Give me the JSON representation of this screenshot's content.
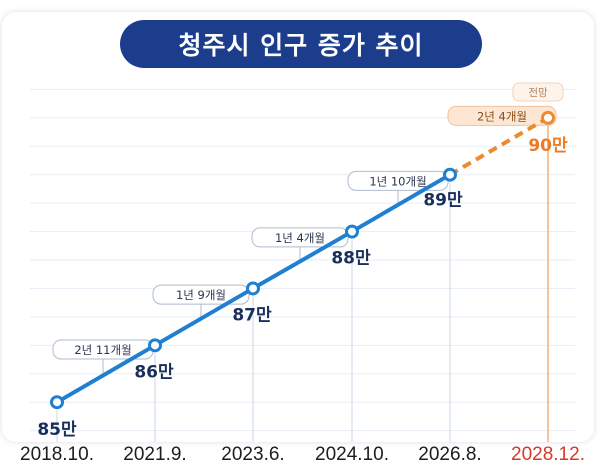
{
  "title": "청주시 인구 증가 추이",
  "forecast_label": "전망",
  "colors": {
    "title_bg": "#1b3d8c",
    "actual_line": "#1f7fd1",
    "forecast_line": "#ee8a2d",
    "forecast_text": "#ee7a22",
    "forecast_date": "#d6392b",
    "value_text": "#1a2e5c",
    "gridline": "#e6edf5",
    "dropline": "#d5dde8"
  },
  "chart_data": {
    "type": "line",
    "title": "청주시 인구 증가 추이",
    "x": [
      "2018.10.",
      "2021.9.",
      "2023.6.",
      "2024.10.",
      "2026.8.",
      "2028.12."
    ],
    "values": [
      85,
      86,
      87,
      88,
      89,
      90
    ],
    "value_labels": [
      "85만",
      "86만",
      "87만",
      "88만",
      "89만",
      "90만"
    ],
    "interval_labels": [
      "2년 11개월",
      "1년 9개월",
      "1년 4개월",
      "1년 10개월",
      "2년 4개월"
    ],
    "forecast_from_index": 4,
    "ylim": [
      84.3,
      90.7
    ],
    "grid": true,
    "xlabel": "",
    "ylabel": ""
  }
}
